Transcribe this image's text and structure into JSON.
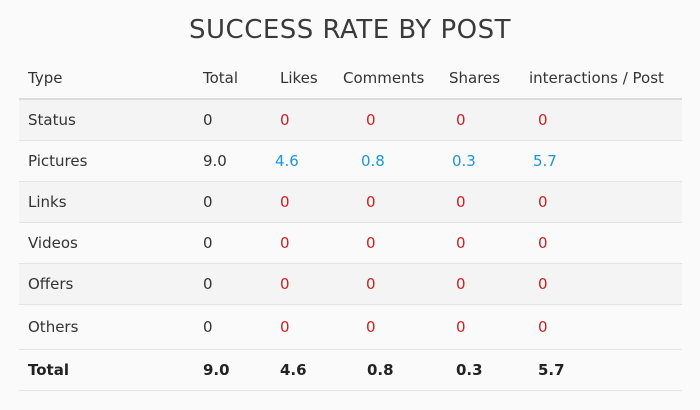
{
  "title": "SUCCESS RATE BY POST",
  "colors": {
    "zero": "#cc1f1f",
    "positive": "#1a97d4"
  },
  "table": {
    "headers": [
      "Type",
      "Total",
      "Likes",
      "Comments",
      "Shares",
      "interactions / Post"
    ],
    "rows": [
      {
        "type": "Status",
        "total": "0",
        "likes": "0",
        "comments": "0",
        "shares": "0",
        "ipp": "0"
      },
      {
        "type": "Pictures",
        "total": "9.0",
        "likes": "4.6",
        "comments": "0.8",
        "shares": "0.3",
        "ipp": "5.7"
      },
      {
        "type": "Links",
        "total": "0",
        "likes": "0",
        "comments": "0",
        "shares": "0",
        "ipp": "0"
      },
      {
        "type": "Videos",
        "total": "0",
        "likes": "0",
        "comments": "0",
        "shares": "0",
        "ipp": "0"
      },
      {
        "type": "Offers",
        "total": "0",
        "likes": "0",
        "comments": "0",
        "shares": "0",
        "ipp": "0"
      },
      {
        "type": "Others",
        "total": "0",
        "likes": "0",
        "comments": "0",
        "shares": "0",
        "ipp": "0"
      }
    ],
    "total": {
      "type": "Total",
      "total": "9.0",
      "likes": "4.6",
      "comments": "0.8",
      "shares": "0.3",
      "ipp": "5.7"
    }
  }
}
